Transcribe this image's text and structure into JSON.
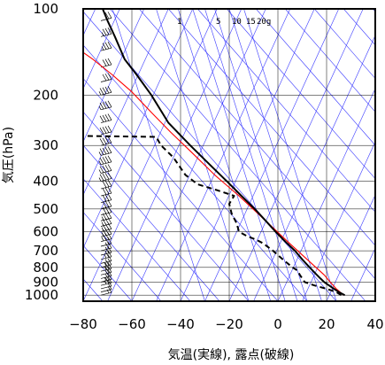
{
  "chart_data": {
    "type": "line",
    "title": "",
    "xlabel": "気温(実線), 露点(破線)",
    "ylabel": "気圧(hPa)",
    "xlim": [
      -80,
      40
    ],
    "ylim": [
      1050,
      100
    ],
    "y_scale": "log",
    "grid": true,
    "x_ticks": [
      -80,
      -60,
      -40,
      -20,
      0,
      20,
      40
    ],
    "x_tick_labels": [
      "−80",
      "−60",
      "−40",
      "−20",
      "0",
      "20",
      "40"
    ],
    "y_ticks": [
      100,
      200,
      300,
      400,
      500,
      600,
      700,
      800,
      900,
      1000
    ],
    "y_tick_labels": [
      "100",
      "200",
      "300",
      "400",
      "500",
      "600",
      "700",
      "800",
      "900",
      "1000"
    ],
    "mixing_ratio_labels": [
      "1",
      "5",
      "10",
      "15",
      "20g"
    ],
    "colors": {
      "temperature": "#000000",
      "dewpoint": "#000000",
      "parcel": "#ff0000",
      "guide_lines": "#3a3aff",
      "grid": "#000000"
    },
    "series": [
      {
        "role": "temperature",
        "style": "solid",
        "points": [
          [
            27.5,
            1000
          ],
          [
            25,
            975
          ],
          [
            23,
            950
          ],
          [
            21,
            925
          ],
          [
            19,
            900
          ],
          [
            17.5,
            875
          ],
          [
            16,
            850
          ],
          [
            13,
            800
          ],
          [
            10,
            750
          ],
          [
            7,
            700
          ],
          [
            3,
            650
          ],
          [
            -1,
            600
          ],
          [
            -5,
            550
          ],
          [
            -9.5,
            500
          ],
          [
            -15,
            450
          ],
          [
            -21,
            400
          ],
          [
            -28,
            350
          ],
          [
            -36,
            300
          ],
          [
            -45,
            250
          ],
          [
            -52,
            200
          ],
          [
            -58,
            170
          ],
          [
            -63,
            150
          ],
          [
            -67,
            125
          ],
          [
            -70,
            110
          ],
          [
            -72,
            100
          ]
        ]
      },
      {
        "role": "dewpoint",
        "style": "dashed",
        "points": [
          [
            26,
            1000
          ],
          [
            24,
            975
          ],
          [
            20,
            950
          ],
          [
            15,
            925
          ],
          [
            11,
            900
          ],
          [
            10,
            875
          ],
          [
            9,
            850
          ],
          [
            8,
            820
          ],
          [
            6,
            800
          ],
          [
            2,
            750
          ],
          [
            -2,
            700
          ],
          [
            -6,
            660
          ],
          [
            -9,
            640
          ],
          [
            -13,
            620
          ],
          [
            -16,
            600
          ],
          [
            -17,
            560
          ],
          [
            -19,
            520
          ],
          [
            -20,
            480
          ],
          [
            -18,
            450
          ],
          [
            -25,
            430
          ],
          [
            -33,
            410
          ],
          [
            -38,
            380
          ],
          [
            -43,
            330
          ],
          [
            -48,
            300
          ],
          [
            -50,
            280
          ],
          [
            -80,
            278
          ]
        ]
      },
      {
        "role": "parcel",
        "style": "solid",
        "points": [
          [
            27,
            1000
          ],
          [
            24,
            950
          ],
          [
            21.5,
            900
          ],
          [
            19,
            850
          ],
          [
            12,
            750
          ],
          [
            4,
            650
          ],
          [
            -5,
            550
          ],
          [
            -16,
            450
          ],
          [
            -26,
            380
          ],
          [
            -35,
            320
          ],
          [
            -44,
            270
          ],
          [
            -52,
            230
          ],
          [
            -60,
            195
          ],
          [
            -68,
            170
          ],
          [
            -76,
            150
          ],
          [
            -80,
            142
          ]
        ]
      }
    ],
    "wind_barbs": [
      {
        "p": 1000,
        "speed": 5
      },
      {
        "p": 975,
        "speed": 10
      },
      {
        "p": 950,
        "speed": 10
      },
      {
        "p": 925,
        "speed": 15
      },
      {
        "p": 900,
        "speed": 15
      },
      {
        "p": 875,
        "speed": 20
      },
      {
        "p": 850,
        "speed": 20
      },
      {
        "p": 825,
        "speed": 15
      },
      {
        "p": 800,
        "speed": 15
      },
      {
        "p": 775,
        "speed": 10
      },
      {
        "p": 750,
        "speed": 15
      },
      {
        "p": 725,
        "speed": 20
      },
      {
        "p": 700,
        "speed": 20
      },
      {
        "p": 675,
        "speed": 20
      },
      {
        "p": 650,
        "speed": 25
      },
      {
        "p": 625,
        "speed": 25
      },
      {
        "p": 600,
        "speed": 25
      },
      {
        "p": 575,
        "speed": 25
      },
      {
        "p": 550,
        "speed": 25
      },
      {
        "p": 525,
        "speed": 30
      },
      {
        "p": 500,
        "speed": 30
      },
      {
        "p": 475,
        "speed": 30
      },
      {
        "p": 450,
        "speed": 30
      },
      {
        "p": 425,
        "speed": 30
      },
      {
        "p": 400,
        "speed": 35
      },
      {
        "p": 375,
        "speed": 35
      },
      {
        "p": 350,
        "speed": 35
      },
      {
        "p": 325,
        "speed": 35
      },
      {
        "p": 300,
        "speed": 40
      },
      {
        "p": 275,
        "speed": 40
      },
      {
        "p": 250,
        "speed": 40
      },
      {
        "p": 225,
        "speed": 35
      },
      {
        "p": 200,
        "speed": 35
      },
      {
        "p": 180,
        "speed": 30
      },
      {
        "p": 160,
        "speed": 30
      },
      {
        "p": 140,
        "speed": 25
      },
      {
        "p": 125,
        "speed": 25
      },
      {
        "p": 110,
        "speed": 20
      },
      {
        "p": 100,
        "speed": 20
      }
    ]
  }
}
